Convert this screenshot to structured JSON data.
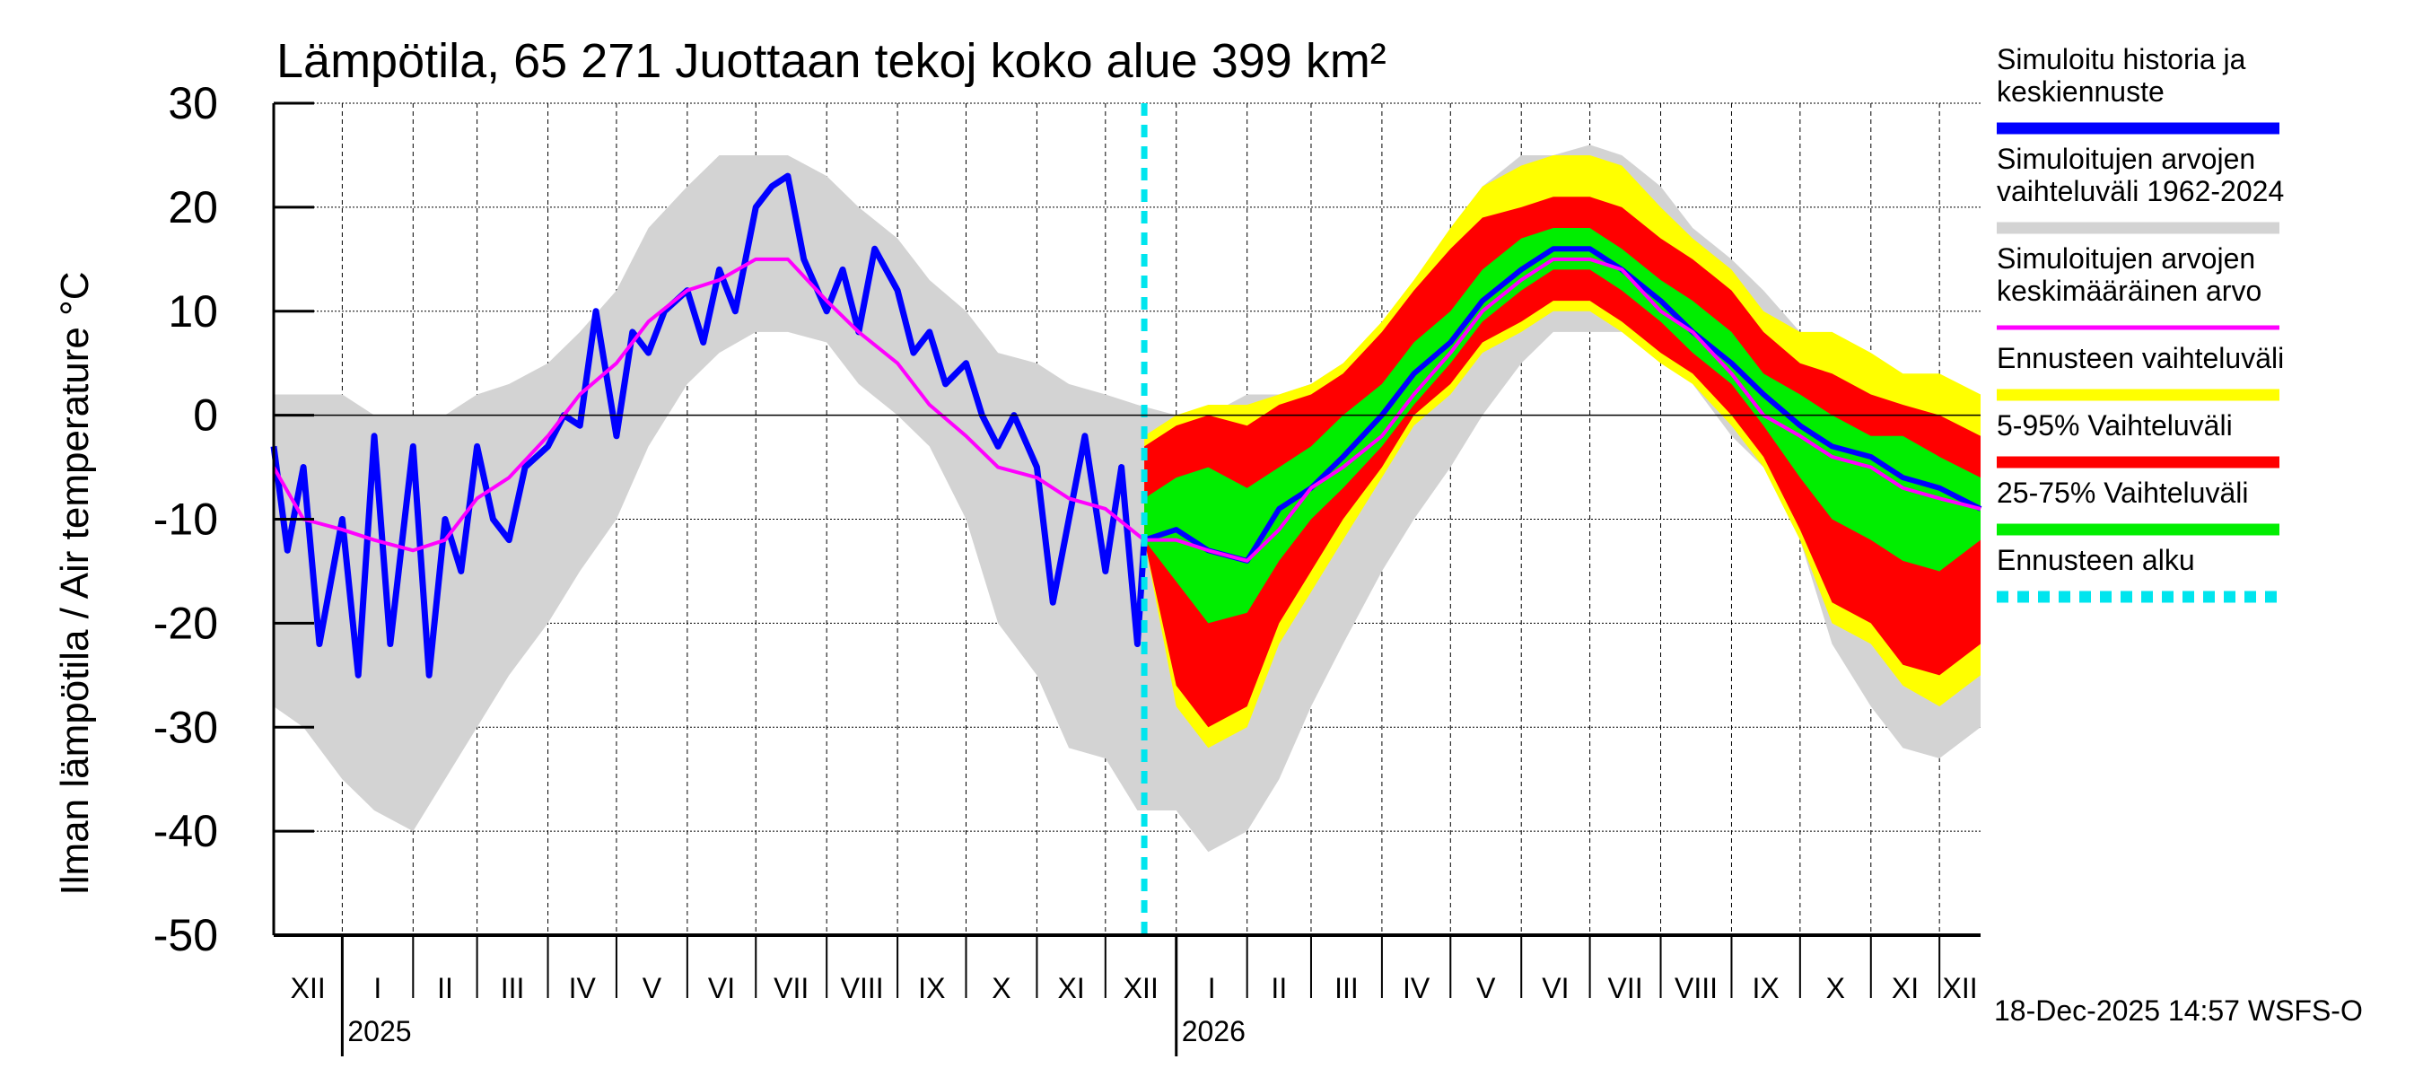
{
  "chart_data": {
    "type": "area",
    "title": "Lämpötila, 65 271 Juottaan tekoj koko alue 399 km²",
    "ylabel": "Ilman lämpötila / Air temperature   °C",
    "xlabel": "",
    "ylim": [
      -50,
      30
    ],
    "yticks": [
      30,
      20,
      10,
      0,
      -10,
      -20,
      -30,
      -40,
      -50
    ],
    "xlim": [
      "2024-12-02",
      "2026-12-19"
    ],
    "month_labels": [
      "XII",
      "I",
      "II",
      "III",
      "IV",
      "V",
      "VI",
      "VII",
      "VIII",
      "IX",
      "X",
      "XI",
      "XII",
      "I",
      "II",
      "III",
      "IV",
      "V",
      "VI",
      "VII",
      "VIII",
      "IX",
      "X",
      "XI",
      "XII"
    ],
    "month_label_start": "2024-12-01",
    "year_labels": [
      {
        "date": "2025-01-01",
        "label": "2025"
      },
      {
        "date": "2026-01-01",
        "label": "2026"
      }
    ],
    "forecast_start": "2025-12-18",
    "grid": true,
    "timestamp": "18-Dec-2025 14:57 WSFS-O",
    "colors": {
      "observed": "#0000ff",
      "range": "#d3d3d3",
      "mean": "#ff00ff",
      "fc_range": "#ffff00",
      "p5_95": "#ff0000",
      "p25_75": "#00ee00",
      "forecast_start": "#00e5ee"
    },
    "legend": [
      {
        "lines": [
          "Simuloitu historia ja",
          "keskiennuste"
        ],
        "color": "#0000ff",
        "style": "solid"
      },
      {
        "lines": [
          "Simuloitujen arvojen",
          "vaihteluväli 1962-2024"
        ],
        "color": "#d3d3d3",
        "style": "solid"
      },
      {
        "lines": [
          "Simuloitujen arvojen",
          "keskimääräinen arvo"
        ],
        "color": "#ff00ff",
        "style": "thin"
      },
      {
        "lines": [
          "Ennusteen vaihteluväli"
        ],
        "color": "#ffff00",
        "style": "solid"
      },
      {
        "lines": [
          "5-95% Vaihteluväli"
        ],
        "color": "#ff0000",
        "style": "solid"
      },
      {
        "lines": [
          "25-75% Vaihteluväli"
        ],
        "color": "#00ee00",
        "style": "solid"
      },
      {
        "lines": [
          "Ennusteen alku"
        ],
        "color": "#00e5ee",
        "style": "dashed"
      }
    ],
    "history_range": {
      "x": [
        "2024-12-02",
        "2024-12-15",
        "2025-01-01",
        "2025-01-15",
        "2025-02-01",
        "2025-02-15",
        "2025-03-01",
        "2025-03-15",
        "2025-04-01",
        "2025-04-15",
        "2025-05-01",
        "2025-05-15",
        "2025-06-01",
        "2025-06-15",
        "2025-07-01",
        "2025-07-15",
        "2025-08-01",
        "2025-08-15",
        "2025-09-01",
        "2025-09-15",
        "2025-10-01",
        "2025-10-15",
        "2025-11-01",
        "2025-11-15",
        "2025-12-01",
        "2025-12-15",
        "2026-01-01",
        "2026-01-15",
        "2026-02-01",
        "2026-02-15",
        "2026-03-01",
        "2026-03-15",
        "2026-04-01",
        "2026-04-15",
        "2026-05-01",
        "2026-05-15",
        "2026-06-01",
        "2026-06-15",
        "2026-07-01",
        "2026-07-15",
        "2026-08-01",
        "2026-08-15",
        "2026-09-01",
        "2026-09-15",
        "2026-10-01",
        "2026-10-15",
        "2026-11-01",
        "2026-11-15",
        "2026-12-01",
        "2026-12-19"
      ],
      "max": [
        2,
        2,
        2,
        0,
        0,
        0,
        2,
        3,
        5,
        8,
        12,
        18,
        22,
        25,
        25,
        25,
        23,
        20,
        17,
        13,
        10,
        6,
        5,
        3,
        2,
        1,
        0,
        0,
        2,
        2,
        3,
        5,
        8,
        12,
        18,
        22,
        25,
        25,
        26,
        25,
        22,
        18,
        15,
        12,
        8,
        6,
        4,
        3,
        3,
        2
      ],
      "min": [
        -28,
        -30,
        -35,
        -38,
        -40,
        -35,
        -30,
        -25,
        -20,
        -15,
        -10,
        -3,
        3,
        6,
        8,
        8,
        7,
        3,
        0,
        -3,
        -10,
        -20,
        -25,
        -32,
        -33,
        -38,
        -38,
        -42,
        -40,
        -35,
        -28,
        -22,
        -15,
        -10,
        -5,
        0,
        5,
        8,
        8,
        8,
        6,
        3,
        -2,
        -5,
        -12,
        -22,
        -28,
        -32,
        -33,
        -30
      ]
    },
    "mean": {
      "x": [
        "2024-12-02",
        "2024-12-15",
        "2025-01-01",
        "2025-01-15",
        "2025-02-01",
        "2025-02-15",
        "2025-03-01",
        "2025-03-15",
        "2025-04-01",
        "2025-04-15",
        "2025-05-01",
        "2025-05-15",
        "2025-06-01",
        "2025-06-15",
        "2025-07-01",
        "2025-07-15",
        "2025-08-01",
        "2025-08-15",
        "2025-09-01",
        "2025-09-15",
        "2025-10-01",
        "2025-10-15",
        "2025-11-01",
        "2025-11-15",
        "2025-12-01",
        "2025-12-18",
        "2026-01-01",
        "2026-01-15",
        "2026-02-01",
        "2026-02-15",
        "2026-03-01",
        "2026-03-15",
        "2026-04-01",
        "2026-04-15",
        "2026-05-01",
        "2026-05-15",
        "2026-06-01",
        "2026-06-15",
        "2026-07-01",
        "2026-07-15",
        "2026-08-01",
        "2026-08-15",
        "2026-09-01",
        "2026-09-15",
        "2026-10-01",
        "2026-10-15",
        "2026-11-01",
        "2026-11-15",
        "2026-12-01",
        "2026-12-19"
      ],
      "values": [
        -5,
        -10,
        -11,
        -12,
        -13,
        -12,
        -8,
        -6,
        -2,
        2,
        5,
        9,
        12,
        13,
        15,
        15,
        11,
        8,
        5,
        1,
        -2,
        -5,
        -6,
        -8,
        -9,
        -12,
        -12,
        -13,
        -14,
        -11,
        -7,
        -5,
        -2,
        2,
        6,
        10,
        13,
        15,
        15,
        14,
        10,
        8,
        4,
        0,
        -2,
        -4,
        -5,
        -7,
        -8,
        -9
      ]
    },
    "observed": {
      "x": [
        "2024-12-02",
        "2024-12-08",
        "2024-12-15",
        "2024-12-22",
        "2025-01-01",
        "2025-01-08",
        "2025-01-15",
        "2025-01-22",
        "2025-02-01",
        "2025-02-08",
        "2025-02-15",
        "2025-02-22",
        "2025-03-01",
        "2025-03-08",
        "2025-03-15",
        "2025-03-22",
        "2025-04-01",
        "2025-04-08",
        "2025-04-15",
        "2025-04-22",
        "2025-05-01",
        "2025-05-08",
        "2025-05-15",
        "2025-05-22",
        "2025-06-01",
        "2025-06-08",
        "2025-06-15",
        "2025-06-22",
        "2025-07-01",
        "2025-07-08",
        "2025-07-15",
        "2025-07-22",
        "2025-08-01",
        "2025-08-08",
        "2025-08-15",
        "2025-08-22",
        "2025-09-01",
        "2025-09-08",
        "2025-09-15",
        "2025-09-22",
        "2025-10-01",
        "2025-10-08",
        "2025-10-15",
        "2025-10-22",
        "2025-11-01",
        "2025-11-08",
        "2025-11-15",
        "2025-11-22",
        "2025-12-01",
        "2025-12-08",
        "2025-12-15",
        "2025-12-18"
      ],
      "values": [
        -3,
        -13,
        -5,
        -22,
        -10,
        -25,
        -2,
        -22,
        -3,
        -25,
        -10,
        -15,
        -3,
        -10,
        -12,
        -5,
        -3,
        0,
        -1,
        10,
        -2,
        8,
        6,
        10,
        12,
        7,
        14,
        10,
        20,
        22,
        23,
        15,
        10,
        14,
        8,
        16,
        12,
        6,
        8,
        3,
        5,
        0,
        -3,
        0,
        -5,
        -18,
        -10,
        -2,
        -15,
        -5,
        -22,
        -12
      ]
    },
    "forecast": {
      "x": [
        "2025-12-18",
        "2026-01-01",
        "2026-01-15",
        "2026-02-01",
        "2026-02-15",
        "2026-03-01",
        "2026-03-15",
        "2026-04-01",
        "2026-04-15",
        "2026-05-01",
        "2026-05-15",
        "2026-06-01",
        "2026-06-15",
        "2026-07-01",
        "2026-07-15",
        "2026-08-01",
        "2026-08-15",
        "2026-09-01",
        "2026-09-15",
        "2026-10-01",
        "2026-10-15",
        "2026-11-01",
        "2026-11-15",
        "2026-12-01",
        "2026-12-19"
      ],
      "max": [
        -2,
        0,
        1,
        1,
        2,
        3,
        5,
        9,
        13,
        18,
        22,
        24,
        25,
        25,
        24,
        20,
        17,
        14,
        10,
        8,
        8,
        6,
        4,
        4,
        2
      ],
      "min": [
        -12,
        -28,
        -32,
        -30,
        -22,
        -17,
        -12,
        -6,
        -1,
        2,
        6,
        8,
        10,
        10,
        8,
        5,
        3,
        -1,
        -5,
        -12,
        -20,
        -22,
        -26,
        -28,
        -25
      ],
      "p95": [
        -3,
        -1,
        0,
        -1,
        1,
        2,
        4,
        8,
        12,
        16,
        19,
        20,
        21,
        21,
        20,
        17,
        15,
        12,
        8,
        5,
        4,
        2,
        1,
        0,
        -2
      ],
      "p5": [
        -12,
        -26,
        -30,
        -28,
        -20,
        -15,
        -10,
        -5,
        0,
        3,
        7,
        9,
        11,
        11,
        9,
        6,
        4,
        0,
        -4,
        -11,
        -18,
        -20,
        -24,
        -25,
        -22
      ],
      "p75": [
        -8,
        -6,
        -5,
        -7,
        -5,
        -3,
        0,
        3,
        7,
        10,
        14,
        17,
        18,
        18,
        16,
        13,
        11,
        8,
        4,
        2,
        0,
        -2,
        -2,
        -4,
        -6
      ],
      "p25": [
        -12,
        -16,
        -20,
        -19,
        -14,
        -10,
        -7,
        -3,
        1,
        5,
        9,
        12,
        14,
        14,
        12,
        9,
        6,
        3,
        -1,
        -6,
        -10,
        -12,
        -14,
        -15,
        -12
      ],
      "median": [
        -12,
        -11,
        -13,
        -14,
        -9,
        -7,
        -4,
        0,
        4,
        7,
        11,
        14,
        16,
        16,
        14,
        11,
        8,
        5,
        2,
        -1,
        -3,
        -4,
        -6,
        -7,
        -9
      ]
    }
  }
}
